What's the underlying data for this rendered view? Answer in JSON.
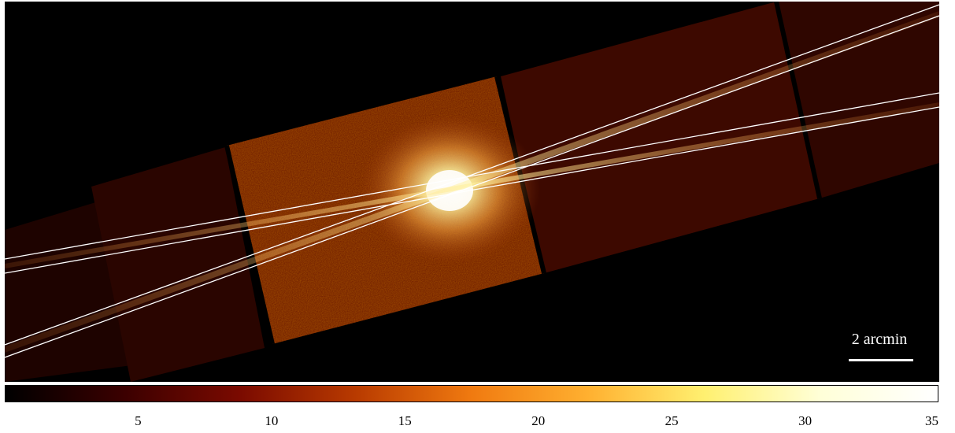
{
  "image": {
    "description_colormap": "heat",
    "scalebar": {
      "label": "2 arcmin"
    }
  },
  "colorbar": {
    "min": 0,
    "max": 35,
    "ticks": [
      "5",
      "10",
      "15",
      "20",
      "25",
      "30",
      "35"
    ],
    "tick_values": [
      5,
      10,
      15,
      20,
      25,
      30,
      35
    ],
    "stops": [
      "#000000",
      "#3a0000",
      "#7a0a00",
      "#b83a00",
      "#f07a10",
      "#ffb030",
      "#fff070",
      "#ffffd8",
      "#ffffff"
    ]
  }
}
